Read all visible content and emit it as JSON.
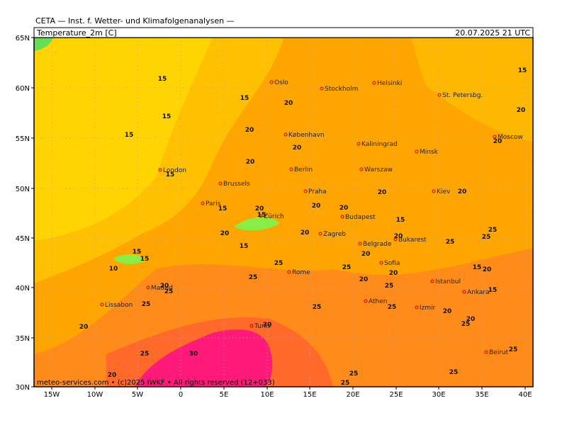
{
  "header": {
    "title": "CETA — Inst. f. Wetter- und Klimafolgenanalysen —",
    "field": "Temperature_2m [C]",
    "valid_time": "20.07.2025 21 UTC"
  },
  "footer": "meteo-services.com • (c)2025 IWKF • All rights reserved (12+033)",
  "lat_labels": [
    "65N",
    "60N",
    "55N",
    "50N",
    "45N",
    "40N",
    "35N",
    "30N"
  ],
  "lon_labels": [
    "15W",
    "10W",
    "5W",
    "0",
    "5E",
    "10E",
    "15E",
    "20E",
    "25E",
    "30E",
    "35E",
    "40E"
  ],
  "cities": [
    "Oslo",
    "Stockholm",
    "Helsinki",
    "St. Petersbg.",
    "Moscow",
    "København",
    "Kaliningrad",
    "Minsk",
    "Berlin",
    "Warszaw",
    "London",
    "Brussels",
    "Praha",
    "Kiev",
    "Paris",
    "Budapest",
    "Zürich",
    "Zagreb",
    "Belgrade",
    "Bukarest",
    "Sofia",
    "Rome",
    "Istanbul",
    "Madrid",
    "Ankara",
    "Lissabon",
    "Athen",
    "Izmir",
    "Tunis",
    "Beirut"
  ],
  "contour_labels": [
    15,
    15,
    20,
    15,
    15,
    20,
    20,
    20,
    20,
    15,
    20,
    15,
    15,
    20,
    15,
    20,
    20,
    20,
    20,
    15,
    20,
    20,
    20,
    15,
    25,
    25,
    25,
    15,
    15,
    10,
    25,
    25,
    20,
    20,
    15,
    20,
    25,
    20,
    25,
    20,
    25,
    25,
    25,
    25,
    20,
    20,
    25,
    20,
    30,
    25,
    30,
    25,
    25,
    25,
    20,
    25,
    15
  ]
}
